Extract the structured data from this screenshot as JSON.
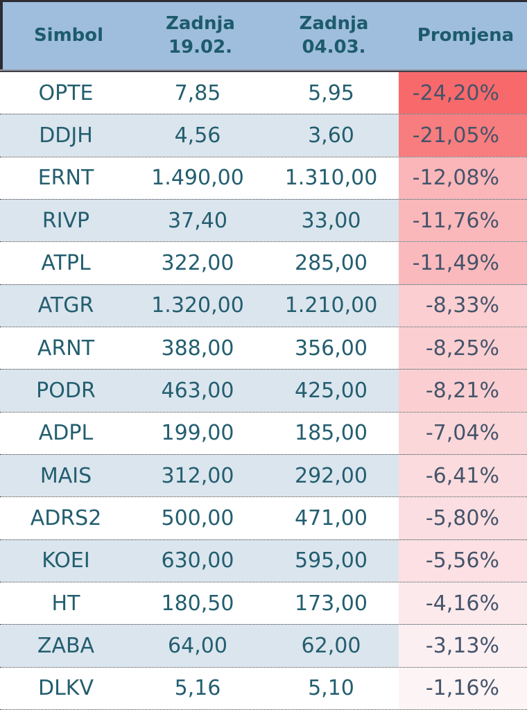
{
  "colors": {
    "header_bg": "#9FBEDE",
    "head_text": "#1D5B6C",
    "body_text": "#235E6F",
    "change_text": "#44546A",
    "row_odd": "#FFFFFF",
    "row_even": "#DBE5EE",
    "frame": "#2B2C34",
    "sep_light": "#979AA6",
    "sep_dark": "#3E3E48",
    "dot": "#3B3B3B",
    "change_max_red": "#F8696B",
    "change_min_red": "#FCF4F5"
  },
  "table": {
    "columns": [
      {
        "line1": "Simbol",
        "line2": ""
      },
      {
        "line1": "Zadnja",
        "line2": "19.02."
      },
      {
        "line1": "Zadnja",
        "line2": "04.03."
      },
      {
        "line1": "Promjena",
        "line2": ""
      }
    ],
    "rows": [
      {
        "symbol": "OPTE",
        "last_1902": "7,85",
        "last_0403": "5,95",
        "change": "-24,20%",
        "change_bg": "#F8696B"
      },
      {
        "symbol": "DDJH",
        "last_1902": "4,56",
        "last_0403": "3,60",
        "change": "-21,05%",
        "change_bg": "#F87D7F"
      },
      {
        "symbol": "ERNT",
        "last_1902": "1.490,00",
        "last_0403": "1.310,00",
        "change": "-12,08%",
        "change_bg": "#FAB6B9"
      },
      {
        "symbol": "RIVP",
        "last_1902": "37,40",
        "last_0403": "33,00",
        "change": "-11,76%",
        "change_bg": "#FAB8BB"
      },
      {
        "symbol": "ATPL",
        "last_1902": "322,00",
        "last_0403": "285,00",
        "change": "-11,49%",
        "change_bg": "#FABABD"
      },
      {
        "symbol": "ATGR",
        "last_1902": "1.320,00",
        "last_0403": "1.210,00",
        "change": "-8,33%",
        "change_bg": "#FBCED1"
      },
      {
        "symbol": "ARNT",
        "last_1902": "388,00",
        "last_0403": "356,00",
        "change": "-8,25%",
        "change_bg": "#FBCFD1"
      },
      {
        "symbol": "PODR",
        "last_1902": "463,00",
        "last_0403": "425,00",
        "change": "-8,21%",
        "change_bg": "#FBCFD2"
      },
      {
        "symbol": "ADPL",
        "last_1902": "199,00",
        "last_0403": "185,00",
        "change": "-7,04%",
        "change_bg": "#FBD7D9"
      },
      {
        "symbol": "MAIS",
        "last_1902": "312,00",
        "last_0403": "292,00",
        "change": "-6,41%",
        "change_bg": "#FBDBDD"
      },
      {
        "symbol": "ADRS2",
        "last_1902": "500,00",
        "last_0403": "471,00",
        "change": "-5,80%",
        "change_bg": "#FBDEE1"
      },
      {
        "symbol": "KOEI",
        "last_1902": "630,00",
        "last_0403": "595,00",
        "change": "-5,56%",
        "change_bg": "#FCE0E3"
      },
      {
        "symbol": "HT",
        "last_1902": "180,50",
        "last_0403": "173,00",
        "change": "-4,16%",
        "change_bg": "#FCE9EC"
      },
      {
        "symbol": "ZABA",
        "last_1902": "64,00",
        "last_0403": "62,00",
        "change": "-3,13%",
        "change_bg": "#FCEFF2"
      },
      {
        "symbol": "DLKV",
        "last_1902": "5,16",
        "last_0403": "5,10",
        "change": "-1,16%",
        "change_bg": "#FCF4F5"
      }
    ]
  },
  "chart_data": {
    "type": "table",
    "title": "",
    "columns": [
      "Simbol",
      "Zadnja 19.02.",
      "Zadnja 04.03.",
      "Promjena"
    ],
    "rows": [
      [
        "OPTE",
        "7,85",
        "5,95",
        "-24,20%"
      ],
      [
        "DDJH",
        "4,56",
        "3,60",
        "-21,05%"
      ],
      [
        "ERNT",
        "1.490,00",
        "1.310,00",
        "-12,08%"
      ],
      [
        "RIVP",
        "37,40",
        "33,00",
        "-11,76%"
      ],
      [
        "ATPL",
        "322,00",
        "285,00",
        "-11,49%"
      ],
      [
        "ATGR",
        "1.320,00",
        "1.210,00",
        "-8,33%"
      ],
      [
        "ARNT",
        "388,00",
        "356,00",
        "-8,25%"
      ],
      [
        "PODR",
        "463,00",
        "425,00",
        "-8,21%"
      ],
      [
        "ADPL",
        "199,00",
        "185,00",
        "-7,04%"
      ],
      [
        "MAIS",
        "312,00",
        "292,00",
        "-6,41%"
      ],
      [
        "ADRS2",
        "500,00",
        "471,00",
        "-5,80%"
      ],
      [
        "KOEI",
        "630,00",
        "595,00",
        "-5,56%"
      ],
      [
        "HT",
        "180,50",
        "173,00",
        "-4,16%"
      ],
      [
        "ZABA",
        "64,00",
        "62,00",
        "-3,13%"
      ],
      [
        "DLKV",
        "5,16",
        "5,10",
        "-1,16%"
      ]
    ],
    "change_percent_values": [
      -24.2,
      -21.05,
      -12.08,
      -11.76,
      -11.49,
      -8.33,
      -8.25,
      -8.21,
      -7.04,
      -6.41,
      -5.8,
      -5.56,
      -4.16,
      -3.13,
      -1.16
    ],
    "layout_hints": {
      "change_column_color_scale": "red-to-white by magnitude of negative change",
      "row_striping": "white / light blue alternating",
      "grid": "dotted horizontal separators"
    }
  }
}
